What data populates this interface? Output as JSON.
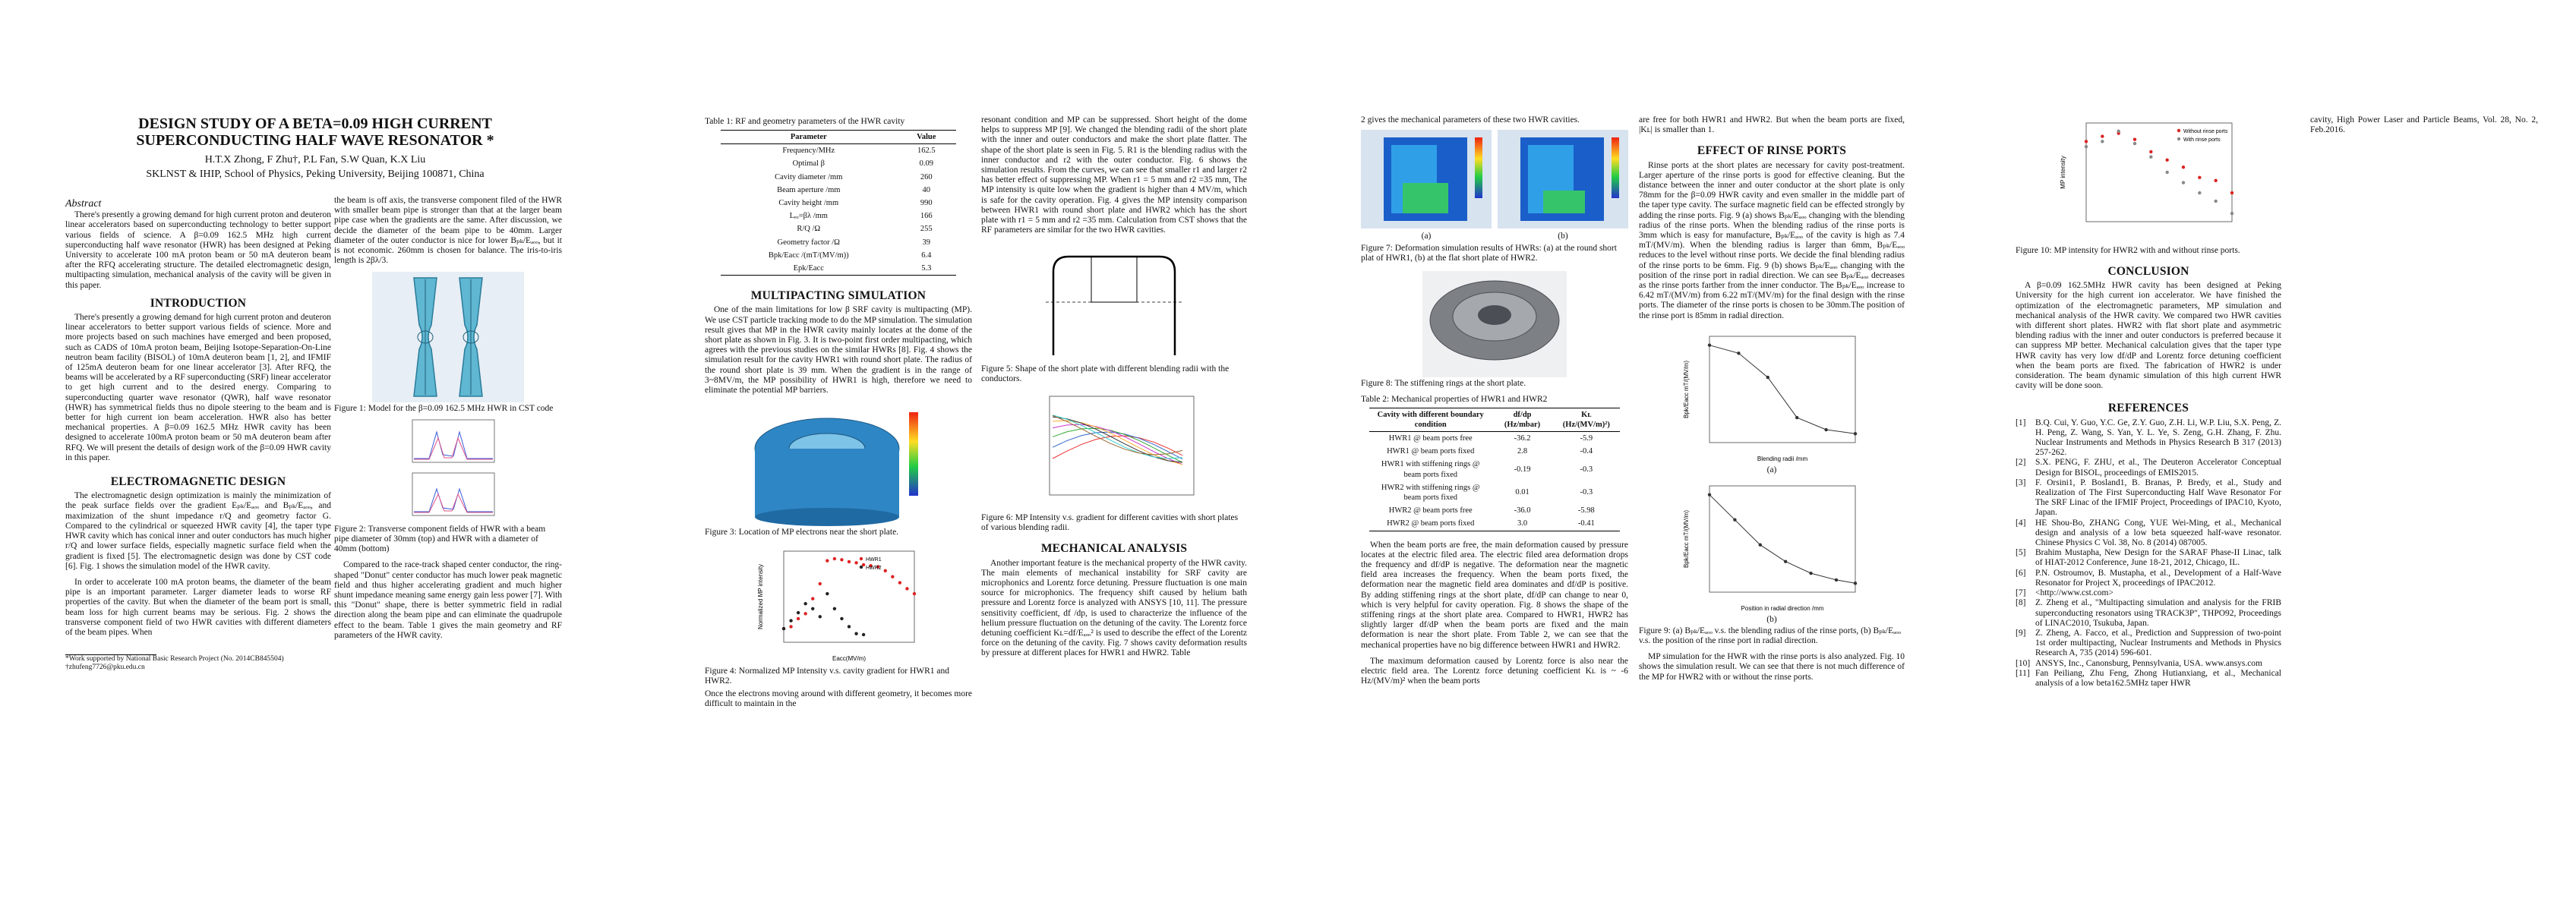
{
  "paper": {
    "title": "DESIGN STUDY OF A BETA=0.09 HIGH CURRENT SUPERCONDUCTING HALF WAVE RESONATOR *",
    "authors": "H.T.X Zhong, F Zhu†, P.L Fan, S.W Quan, K.X Liu",
    "affiliation": "SKLNST & IHIP, School of Physics, Peking University, Beijing 100871, China"
  },
  "abstract": {
    "heading": "Abstract",
    "text": "There's presently a growing demand for high current proton and deuteron linear accelerators based on superconducting technology to better support various fields of science. A β=0.09 162.5 MHz high current superconducting half wave resonator (HWR) has been designed at Peking University to accelerate 100 mA proton beam or 50 mA deuteron beam after the RFQ accelerating structure. The detailed electromagnetic design, multipacting simulation, mechanical analysis of the cavity will be given in this paper."
  },
  "sections": {
    "intro_title": "INTRODUCTION",
    "intro_text": "There's presently a growing demand for high current proton and deuteron linear accelerators to better support various fields of science. More and more projects based on such machines have emerged and been proposed, such as CADS of 10mA proton beam, Beijing Isotope-Separation-On-Line neutron beam facility (BISOL) of 10mA deuteron beam [1, 2], and IFMIF of 125mA deuteron beam for one linear accelerator [3]. After RFQ, the beams will be accelerated by a RF superconducting (SRF) linear accelerator to get high current and to the desired energy. Comparing to superconducting quarter wave resonator (QWR), half wave resonator (HWR) has symmetrical fields thus no dipole steering to the beam and is better for high current ion beam acceleration. HWR also has better mechanical properties. A β=0.09 162.5 MHz HWR cavity has been designed to accelerate 100mA proton beam or 50 mA deuteron beam after RFQ. We will present the details of design work of the β=0.09 HWR cavity in this paper.",
    "em_title": "ELECTROMAGNETIC DESIGN",
    "em_text1": "The electromagnetic design optimization is mainly the minimization of the peak surface fields over the gradient Eₚₖ/Eₐₒₒ and Bₚₖ/Eₐₒₒ, and maximization of the shunt impedance r/Q and geometry factor G. Compared to the cylindrical or squeezed HWR cavity [4], the taper type HWR cavity which has conical inner and outer conductors has much higher r/Q and lower surface fields, especially magnetic surface field when the gradient is fixed [5]. The electromagnetic design was done by CST code [6]. Fig. 1 shows the simulation model of the HWR cavity.",
    "em_text2": "In order to accelerate 100 mA proton beams, the diameter of the beam pipe is an important parameter. Larger diameter leads to worse RF properties of the cavity. But when the diameter of the beam port is small, beam loss for high current beams may be serious. Fig. 2 shows the transverse component field of two HWR cavities with different diameters of the beam pipes. When",
    "col2_text1": "the beam is off axis, the transverse component filed of the HWR with smaller beam pipe is stronger than that at the larger beam pipe case when the gradients are the same. After discussion, we decide the diameter of the beam pipe to be 40mm. Larger diameter of the outer conductor is nice for lower Bₚₖ/Eₐₒₒ, but it is not economic. 260mm is chosen for balance. The iris-to-iris length is 2βλ/3.",
    "col2_text2": "Compared to the race-track shaped center conductor, the ring-shaped \"Donut\" center conductor has much lower peak magnetic field and thus higher accelerating gradient and much higher shunt impedance meaning same energy gain less power [7]. With this \"Donut\" shape, there is better symmetric field in radial direction along the beam pipe and can eliminate the quadrupole effect to the beam. Table 1 gives the main geometry and RF parameters of the HWR cavity.",
    "mp_title": "MULTIPACTING SIMULATION",
    "mp_text": "One of the main limitations for low β SRF cavity is multipacting (MP). We use CST particle tracking mode to do the MP simulation. The simulation result gives that MP in the HWR cavity mainly locates at the dome of the short plate as shown in Fig. 3. It is two-point first order multipacting, which agrees with the previous studies on the similar HWRs [8]. Fig. 4 shows the simulation result for the cavity HWR1 with round short plate. The radius of the round short plate is 39 mm. When the gradient is in the range of 3~8MV/m, the MP possibility of HWR1 is high, therefore we need to eliminate the potential MP barriers.",
    "col3_text": "Once the electrons moving around with different geometry, it becomes more difficult to maintain in the",
    "col4_text1": "resonant condition and MP can be suppressed. Short height of the dome helps to suppress MP [9]. We changed the blending radii of the short plate with the inner and outer conductors and make the short plate flatter. The shape of the short plate is seen in Fig. 5. R1 is the blending radius with the inner conductor and r2 with the outer conductor. Fig. 6 shows the simulation results. From the curves, we can see that smaller r1 and larger r2 has better effect of suppressing MP. When r1 = 5 mm and r2 =35 mm, The MP intensity is quite low when the gradient is higher than 4 MV/m, which is safe for the cavity operation. Fig. 4 gives the MP intensity comparison between HWR1 with round short plate and HWR2 which has the short plate with r1 = 5 mm and r2 =35 mm. Calculation from CST shows that the RF parameters are similar for the two HWR cavities.",
    "mech_title": "MECHANICAL ANALYSIS",
    "mech_text": "Another important feature is the mechanical property of the HWR cavity. The main elements of mechanical instability for SRF cavity are microphonics and Lorentz force detuning. Pressure fluctuation is one main source for microphonics. The frequency shift caused by helium bath pressure and Lorentz force is analyzed with ANSYS [10, 11]. The pressure sensitivity coefficient, df /dp, is used to characterize the influence of the helium pressure fluctuation on the detuning of the cavity. The Lorentz force detuning coefficient Kʟ=df/Eₐₒₒ² is used to describe the effect of the Lorentz force on the detuning of the cavity. Fig. 7 shows cavity deformation results by pressure at different places for HWR1 and HWR2. Table",
    "col5_text1": "2 gives the mechanical parameters of these two HWR cavities.",
    "col6_text1": "When the beam ports are free, the main deformation caused by pressure locates at the electric filed area. The electric filed area deformation drops the frequency and df/dP is negative. The deformation near the magnetic field area increases the frequency. When the beam ports fixed, the deformation near the magnetic field area dominates and df/dP is positive. By adding stiffening rings at the short plate, df/dP can change to near 0, which is very helpful for cavity operation. Fig. 8 shows the shape of the stiffening rings at the short plate area. Compared to HWR1, HWR2 has slightly larger df/dP when the beam ports are fixed and the main deformation is near the short plate. From Table 2, we can see that the mechanical properties have no big difference between HWR1 and HWR2.",
    "col6_text2": "The maximum deformation caused by Lorentz force is also near the electric field area. The Lorentz force detuning coefficient Kʟ is ~ -6 Hz/(MV/m)² when the beam ports",
    "col7_text1": "are free for both HWR1 and HWR2. But when the beam ports are fixed, |Kʟ| is smaller than 1.",
    "rinse_title": "EFFECT OF RINSE PORTS",
    "rinse_text": "Rinse ports at the short plates are necessary for cavity post-treatment. Larger aperture of the rinse ports is good for effective cleaning. But the distance between the inner and outer conductor at the short plate is only 78mm for the β=0.09 HWR cavity and even smaller in the middle part of the taper type cavity. The surface magnetic field can be effected strongly by adding the rinse ports. Fig. 9 (a) shows Bₚₖ/Eₐₒₒ changing with the blending radius of the rinse ports. When the blending radius of the rinse ports is 3mm which is easy for manufacture, Bₚₖ/Eₐₒₒ of the cavity is high as 7.4 mT/(MV/m). When the blending radius is larger than 6mm, Bₚₖ/Eₐₒₒ reduces to the level without rinse ports. We decide the final blending radius of the rinse ports to be 6mm. Fig. 9 (b) shows Bₚₖ/Eₐₒₒ changing with the position of the rinse port in radial direction. We can see Bₚₖ/Eₐₒₒ decreases as the rinse ports farther from the inner conductor. The Bₚₖ/Eₐₒₒ increase to 6.42 mT/(MV/m) from 6.22 mT/(MV/m) for the final design with the rinse ports. The diameter of the rinse ports is chosen to be 30mm.The position of the rinse port is 85mm in radial direction.",
    "col8_text1": "MP simulation for the HWR with the rinse ports is also analyzed. Fig. 10 shows the simulation result. We can see that there is not much difference of the MP for HWR2 with or without the rinse ports.",
    "concl_title": "CONCLUSION",
    "concl_text": "A β=0.09 162.5MHz HWR cavity has been designed at Peking University for the high current ion accelerator. We have finished the optimization of the electromagnetic parameters, MP simulation and mechanical analysis of the HWR cavity. We compared two HWR cavities with different short plates. HWR2 with flat short plate and asymmetric blending radius with the inner and outer conductors is preferred because it can suppress MP better. Mechanical calculation gives that the taper type HWR cavity has very low df/dP and Lorentz force detuning coefficient when the beam ports are fixed. The fabrication of HWR2 is under consideration. The beam dynamic simulation of this high current HWR cavity will be done soon.",
    "refs_title": "REFERENCES",
    "last_col_text": "cavity, High Power Laser and Particle Beams, Vol. 28, No. 2, Feb.2016."
  },
  "footnotes": [
    "*Work supported by National Basic Research Project (No. 2014CB845504)",
    "†zhufeng7726@pku.edu.cn"
  ],
  "captions": {
    "fig1": "Figure 1: Model for the β=0.09 162.5 MHz HWR in CST code",
    "fig2": "Figure 2: Transverse component fields of HWR with a beam pipe diameter of 30mm (top) and HWR with a diameter of 40mm (bottom)",
    "fig3": "Figure 3: Location of MP electrons near the short plate.",
    "fig4": "Figure 4: Normalized MP Intensity v.s. cavity gradient for HWR1 and HWR2.",
    "fig5": "Figure 5: Shape of the short plate with different blending radii with the conductors.",
    "fig6": "Figure 6: MP Intensity v.s. gradient for different cavities with short plates of various blending radii.",
    "fig7": "Figure 7: Deformation simulation results of HWRs: (a) at the round short plat of HWR1, (b) at the flat short plate of HWR2.",
    "fig7a": "(a)",
    "fig7b": "(b)",
    "fig8": "Figure 8: The stiffening rings at the short plate.",
    "fig9": "Figure 9: (a) Bₚₖ/Eₐₒₒ v.s. the blending radius of the rinse ports, (b) Bₚₖ/Eₐₒₒ v.s. the position of the rinse port in radial direction.",
    "fig9a": "(a)",
    "fig9b": "(b)",
    "fig10": "Figure 10: MP intensity for HWR2 with and without rinse ports.",
    "table1": "Table 1: RF and geometry parameters of the HWR cavity",
    "table2": "Table 2: Mechanical properties of HWR1 and HWR2"
  },
  "table1": {
    "headers": [
      "Parameter",
      "Value"
    ],
    "rows": [
      [
        "Frequency/MHz",
        "162.5"
      ],
      [
        "Optimal β",
        "0.09"
      ],
      [
        "Cavity diameter /mm",
        "260"
      ],
      [
        "Beam aperture /mm",
        "40"
      ],
      [
        "Cavity height /mm",
        "990"
      ],
      [
        "Lₑₒ=βλ /mm",
        "166"
      ],
      [
        "R/Q /Ω",
        "255"
      ],
      [
        "Geometry factor /Ω",
        "39"
      ],
      [
        "Bpk/Eacc /(mT/(MV/m))",
        "6.4"
      ],
      [
        "Epk/Eacc",
        "5.3"
      ]
    ]
  },
  "table2": {
    "headers": [
      "Cavity with different boundary condition",
      "df/dp (Hz/mbar)",
      "Kʟ (Hz/(MV/m)²)"
    ],
    "rows": [
      [
        "HWR1 @ beam ports free",
        "-36.2",
        "-5.9"
      ],
      [
        "HWR1 @ beam ports fixed",
        "2.8",
        "-0.4"
      ],
      [
        "HWR1 with stiffening rings @ beam ports fixed",
        "-0.19",
        "-0.3"
      ],
      [
        "HWR2 with stiffening rings @ beam ports fixed",
        "0.01",
        "-0.3"
      ],
      [
        "HWR2 @ beam ports free",
        "-36.0",
        "-5.98"
      ],
      [
        "HWR2 @ beam ports fixed",
        "3.0",
        "-0.41"
      ]
    ]
  },
  "references": [
    [
      "[1]",
      "B.Q. Cui, Y. Guo, Y.C. Ge, Z.Y. Guo, Z.H. Li, W.P. Liu, S.X. Peng, Z. H. Peng, Z. Wang, S. Yan, Y. L. Ye, S. Zeng, G.H. Zhang, F. Zhu. Nuclear Instruments and Methods in Physics Research B 317 (2013) 257-262."
    ],
    [
      "[2]",
      "S.X. PENG, F. ZHU, et al., The Deuteron Accelerator Conceptual Design for BISOL, proceedings of EMIS2015."
    ],
    [
      "[3]",
      "F. Orsini1, P. Bosland1, B. Branas, P. Bredy, et al., Study and Realization of The First Superconducting Half Wave Resonator For The SRF Linac of the IFMIF Project, Proceedings of IPAC10, Kyoto, Japan."
    ],
    [
      "[4]",
      "HE Shou-Bo, ZHANG Cong, YUE Wei-Ming, et al., Mechanical design and analysis of a low beta squeezed half-wave resonator. Chinese Physics C Vol. 38, No. 8 (2014) 087005."
    ],
    [
      "[5]",
      "Brahim Mustapha, New Design for the SARAF Phase-II Linac, talk of HIAT-2012 Conference, June 18-21, 2012, Chicago, IL."
    ],
    [
      "[6]",
      "P.N. Ostroumov, B. Mustapha, et al., Development of a Half-Wave Resonator for Project X, proceedings of IPAC2012."
    ],
    [
      "[7]",
      "<http://www.cst.com>"
    ],
    [
      "[8]",
      "Z. Zheng et al., \"Multipacting simulation and analysis for the FRIB superconducting resonators using TRACK3P\", THPO92, Proceedings of LINAC2010, Tsukuba, Japan."
    ],
    [
      "[9]",
      "Z. Zheng, A. Facco, et al., Prediction and Suppression of two-point 1st order multipacting, Nuclear Instruments and Methods in Physics Research A, 735 (2014) 596-601."
    ],
    [
      "[10]",
      "ANSYS, Inc., Canonsburg, Pennsylvania, USA. www.ansys.com"
    ],
    [
      "[11]",
      "Fan Peiliang, Zhu Feng, Zhong Hutianxiang, et al., Mechanical analysis of a low beta162.5MHz taper HWR"
    ]
  ],
  "chart_data": [
    {
      "id": "fig4",
      "type": "scatter",
      "xlabel": "Eacc(MV/m)",
      "ylabel": "Normalized MP intensity",
      "series": [
        {
          "name": "HWR1",
          "color": "#d22",
          "x": [
            1,
            1.5,
            2,
            2.5,
            3,
            3.5,
            4,
            4.5,
            5,
            5.5,
            6,
            6.5,
            7,
            7.5,
            8,
            8.5,
            9,
            9.5,
            10
          ],
          "y": [
            0.1,
            0.12,
            0.2,
            0.25,
            0.4,
            0.55,
            0.78,
            0.8,
            0.79,
            0.77,
            0.76,
            0.74,
            0.73,
            0.72,
            0.68,
            0.62,
            0.56,
            0.5,
            0.45
          ]
        },
        {
          "name": "HWR2",
          "color": "#222",
          "x": [
            1,
            1.5,
            2,
            2.5,
            3,
            3.5,
            4,
            4.5,
            5,
            5.5,
            6,
            6.5
          ],
          "y": [
            0.1,
            0.18,
            0.26,
            0.35,
            0.3,
            0.22,
            0.45,
            0.3,
            0.2,
            0.12,
            0.05,
            0.04
          ]
        }
      ]
    },
    {
      "id": "fig9a",
      "type": "line",
      "xlabel": "Blending radii /mm",
      "ylabel": "Bpk/Eacc mT/(MV/m)",
      "x": [
        3,
        4,
        5,
        6,
        7,
        8
      ],
      "y": [
        7.4,
        7.3,
        7.0,
        6.5,
        6.35,
        6.3
      ]
    },
    {
      "id": "fig9b",
      "type": "line",
      "xlabel": "Position in radial direction /mm",
      "ylabel": "Bpk/Eacc mT/(MV/m)",
      "x": [
        62,
        66,
        70,
        74,
        78,
        82,
        85
      ],
      "y": [
        6.95,
        6.8,
        6.65,
        6.55,
        6.48,
        6.44,
        6.42
      ]
    },
    {
      "id": "fig10",
      "type": "scatter",
      "ylabel": "MP intensity",
      "series": [
        {
          "name": "Without rinse ports",
          "color": "#d22",
          "x": [
            1,
            1.5,
            2,
            2.5,
            3,
            3.5,
            4,
            4.5,
            5,
            5.5
          ],
          "y": [
            0.8,
            0.85,
            0.88,
            0.82,
            0.7,
            0.62,
            0.55,
            0.45,
            0.42,
            0.3
          ]
        },
        {
          "name": "With rinse ports",
          "color": "#888",
          "x": [
            1,
            1.5,
            2,
            2.5,
            3,
            3.5,
            4,
            4.5,
            5,
            5.5
          ],
          "y": [
            0.75,
            0.8,
            0.9,
            0.78,
            0.65,
            0.5,
            0.4,
            0.3,
            0.22,
            0.1
          ]
        }
      ]
    }
  ]
}
